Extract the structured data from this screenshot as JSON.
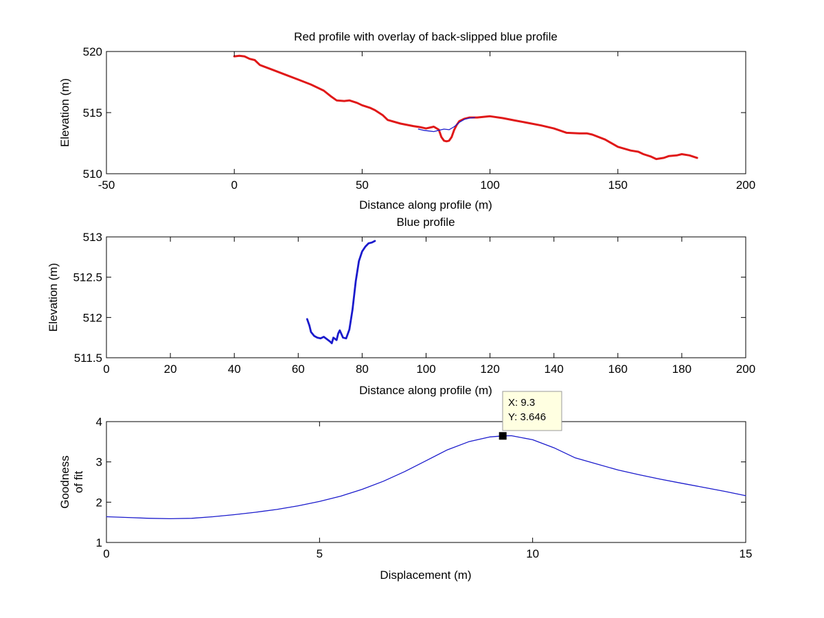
{
  "chart_data": [
    {
      "type": "line",
      "title": "Red profile with overlay of back-slipped blue profile",
      "xlabel": "Distance along profile (m)",
      "ylabel": "Elevation (m)",
      "xlim": [
        -50,
        200
      ],
      "ylim": [
        510,
        520
      ],
      "xticks": [
        -50,
        0,
        50,
        100,
        150,
        200
      ],
      "yticks": [
        510,
        515,
        520
      ],
      "series": [
        {
          "name": "red profile",
          "color": "#e01818",
          "width": 3,
          "x": [
            0,
            2,
            4,
            6,
            8,
            10,
            15,
            20,
            25,
            30,
            35,
            38,
            40,
            43,
            45,
            48,
            50,
            53,
            55,
            58,
            60,
            65,
            70,
            73,
            75,
            78,
            80,
            81,
            82,
            83,
            84,
            85,
            86,
            87,
            88,
            90,
            92,
            95,
            100,
            105,
            110,
            115,
            120,
            125,
            130,
            135,
            138,
            140,
            145,
            150,
            155,
            158,
            160,
            163,
            165,
            168,
            170,
            173,
            175,
            178,
            181
          ],
          "y": [
            519.6,
            519.65,
            519.6,
            519.4,
            519.3,
            518.9,
            518.5,
            518.1,
            517.7,
            517.3,
            516.8,
            516.3,
            516.0,
            515.95,
            516.0,
            515.8,
            515.6,
            515.4,
            515.2,
            514.8,
            514.4,
            514.1,
            513.9,
            513.8,
            513.7,
            513.85,
            513.6,
            513.0,
            512.7,
            512.65,
            512.7,
            513.0,
            513.6,
            514.0,
            514.3,
            514.5,
            514.6,
            514.6,
            514.7,
            514.55,
            514.35,
            514.15,
            513.95,
            513.7,
            513.35,
            513.3,
            513.3,
            513.2,
            512.8,
            512.2,
            511.9,
            511.8,
            511.6,
            511.4,
            511.2,
            511.3,
            511.45,
            511.5,
            511.6,
            511.5,
            511.3
          ]
        },
        {
          "name": "back-slipped blue profile",
          "color": "#1a1acc",
          "width": 1.3,
          "x": [
            72,
            74,
            76,
            78,
            80,
            82,
            84,
            86,
            88,
            90,
            92,
            94
          ],
          "y": [
            513.65,
            513.55,
            513.5,
            513.45,
            513.55,
            513.65,
            513.6,
            513.85,
            514.2,
            514.45,
            514.55,
            514.6
          ]
        }
      ]
    },
    {
      "type": "line",
      "title": "Blue profile",
      "xlabel": "Distance along profile (m)",
      "ylabel": "Elevation (m)",
      "xlim": [
        0,
        200
      ],
      "ylim": [
        511.5,
        513
      ],
      "xticks": [
        0,
        20,
        40,
        60,
        80,
        100,
        120,
        140,
        160,
        180,
        200
      ],
      "yticks": [
        511.5,
        512,
        512.5,
        513
      ],
      "series": [
        {
          "name": "blue profile",
          "color": "#1a1acc",
          "width": 2.8,
          "x": [
            62.8,
            63.5,
            64,
            65,
            66,
            67,
            68,
            69,
            70,
            70.5,
            71,
            72,
            72.5,
            73,
            74,
            75,
            76,
            77,
            78,
            79,
            80,
            81,
            82,
            83,
            84
          ],
          "y": [
            511.98,
            511.9,
            511.82,
            511.77,
            511.75,
            511.74,
            511.76,
            511.73,
            511.7,
            511.68,
            511.75,
            511.72,
            511.8,
            511.84,
            511.75,
            511.74,
            511.85,
            512.1,
            512.45,
            512.7,
            512.82,
            512.88,
            512.92,
            512.93,
            512.95
          ]
        }
      ]
    },
    {
      "type": "line",
      "title": "",
      "xlabel": "Displacement (m)",
      "ylabel": "Goodness of fit",
      "ylabel_lines": [
        "Goodness",
        "of fit"
      ],
      "xlim": [
        0,
        15
      ],
      "ylim": [
        1,
        4
      ],
      "xticks": [
        0,
        5,
        10,
        15
      ],
      "yticks": [
        1,
        2,
        3,
        4
      ],
      "series": [
        {
          "name": "goodness of fit",
          "color": "#1a1acc",
          "width": 1.3,
          "x": [
            0,
            0.5,
            1,
            1.5,
            2,
            2.5,
            3,
            3.5,
            4,
            4.5,
            5,
            5.5,
            6,
            6.5,
            7,
            7.5,
            8,
            8.5,
            9,
            9.3,
            9.5,
            10,
            10.5,
            11,
            11.5,
            12,
            12.5,
            13,
            13.5,
            14,
            14.5,
            15
          ],
          "y": [
            1.64,
            1.62,
            1.6,
            1.59,
            1.6,
            1.64,
            1.69,
            1.75,
            1.82,
            1.91,
            2.02,
            2.15,
            2.32,
            2.52,
            2.76,
            3.03,
            3.3,
            3.5,
            3.62,
            3.646,
            3.65,
            3.55,
            3.35,
            3.1,
            2.95,
            2.8,
            2.68,
            2.57,
            2.47,
            2.37,
            2.27,
            2.16
          ]
        }
      ],
      "datatip": {
        "x": 9.3,
        "y": 3.646,
        "x_text": "X: 9.3",
        "y_text": "Y: 3.646"
      }
    }
  ]
}
